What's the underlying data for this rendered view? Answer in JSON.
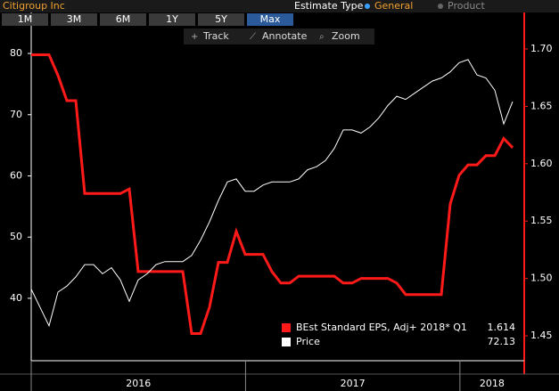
{
  "header": {
    "title": "Citigroup Inc",
    "estimate_type_label": "Estimate Type",
    "options": [
      "General",
      "Product"
    ],
    "selected_option": 0
  },
  "ranges": {
    "items": [
      "1M",
      "3M",
      "6M",
      "1Y",
      "5Y",
      "Max"
    ],
    "selected": 5
  },
  "tools": [
    "Track",
    "Annotate",
    "Zoom"
  ],
  "chart_data": {
    "type": "line",
    "xlim": [
      2016,
      2018.3
    ],
    "xticks": [
      2016,
      2017,
      2018
    ],
    "ylim": [
      29.8,
      85.1
    ],
    "yticks": [
      40,
      50,
      60,
      70,
      80
    ],
    "y2lim": [
      1.4283,
      1.7233
    ],
    "y2ticks": [
      1.45,
      {
        "value": 1.5,
        "label": "1.50"
      },
      1.55,
      {
        "value": 1.6,
        "label": "1.60"
      },
      1.65,
      {
        "value": 1.7,
        "label": "1.70"
      }
    ],
    "series": [
      {
        "name": "BEst Standard EPS, Adj+ 2018* Q1",
        "color": "#ff1a1a",
        "axis": "y2",
        "values": [
          1.695,
          1.695,
          1.695,
          1.677,
          1.655,
          1.655,
          1.574,
          1.574,
          1.574,
          1.574,
          1.574,
          1.578,
          1.506,
          1.506,
          1.506,
          1.506,
          1.506,
          1.506,
          1.452,
          1.452,
          1.475,
          1.514,
          1.514,
          1.541,
          1.521,
          1.521,
          1.521,
          1.506,
          1.496,
          1.496,
          1.502,
          1.502,
          1.502,
          1.502,
          1.502,
          1.496,
          1.496,
          1.5,
          1.5,
          1.5,
          1.5,
          1.496,
          1.486,
          1.486,
          1.486,
          1.486,
          1.486,
          1.565,
          1.59,
          1.599,
          1.599,
          1.607,
          1.607,
          1.622,
          1.614
        ]
      },
      {
        "name": "Price",
        "color": "#ffffff",
        "values": [
          41.5,
          38.5,
          35.5,
          41,
          42,
          43.5,
          45.5,
          45.5,
          44,
          45,
          43,
          39.5,
          43,
          44,
          45.5,
          46,
          46,
          46,
          47,
          49.5,
          52.5,
          56,
          59,
          59.5,
          57.5,
          57.5,
          58.5,
          59,
          59,
          59,
          59.5,
          61,
          61.5,
          62.5,
          64.5,
          67.5,
          67.5,
          67,
          68,
          69.5,
          71.5,
          73,
          72.5,
          73.5,
          74.5,
          75.5,
          76,
          77,
          78.5,
          79,
          76.5,
          76,
          74,
          68.5,
          72.13
        ]
      }
    ]
  }
}
